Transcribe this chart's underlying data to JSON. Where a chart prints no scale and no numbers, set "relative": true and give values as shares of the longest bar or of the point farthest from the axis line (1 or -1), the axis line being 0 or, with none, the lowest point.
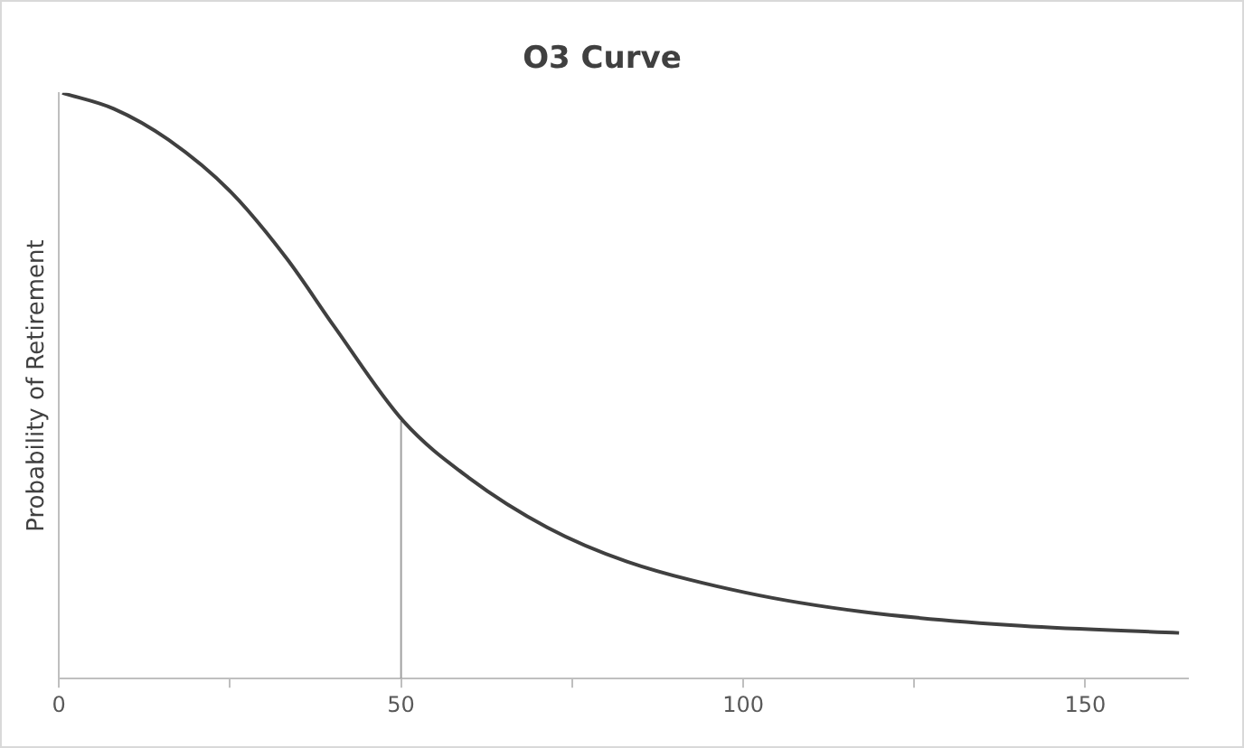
{
  "chart_data": {
    "type": "line",
    "title": "O3 Curve",
    "ylabel": "Probability of Retirement",
    "relative": true,
    "xlim": [
      0,
      165
    ],
    "xticks": [
      0,
      {
        "value": 25,
        "label": null
      },
      50,
      {
        "value": 75,
        "label": null
      },
      100,
      {
        "value": 125,
        "label": null
      },
      150
    ],
    "grid": false,
    "legend": false,
    "marker": "none",
    "series": [
      {
        "color": "#404040",
        "x": [
          0.5,
          8,
          16,
          25.2,
          33.3,
          40.3,
          50.3,
          59.9,
          71.4,
          83,
          100.3,
          117.5,
          140.7,
          163.7
        ],
        "values": [
          1,
          0.973,
          0.92,
          0.83,
          0.717,
          0.6,
          0.44,
          0.343,
          0.258,
          0.2,
          0.147,
          0.114,
          0.09,
          0.078
        ]
      },
      {
        "color": "#a0a0a0",
        "x": [
          50,
          50
        ],
        "values": [
          0,
          0.44
        ]
      }
    ]
  }
}
